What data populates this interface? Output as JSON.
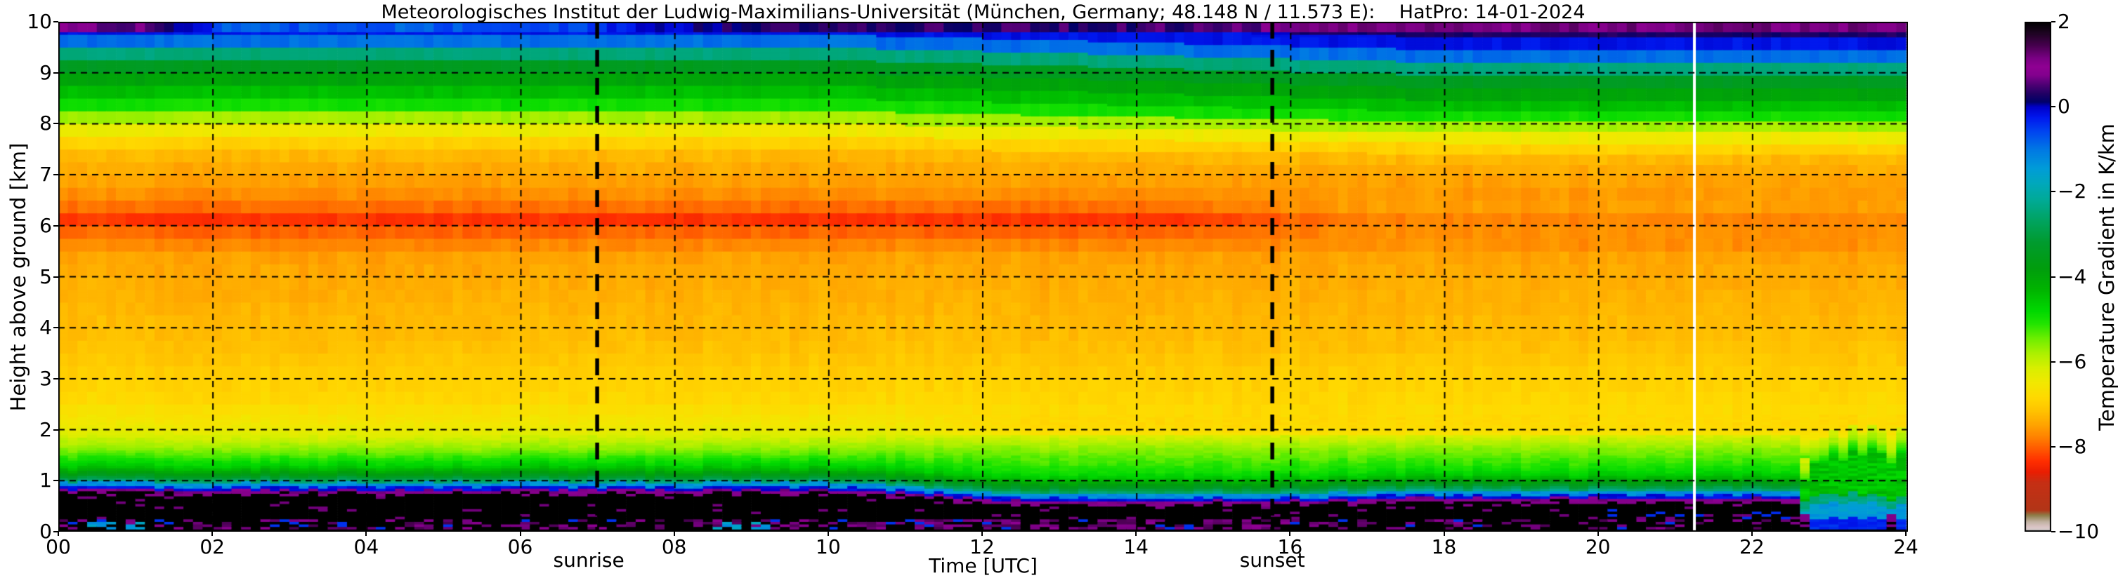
{
  "figure": {
    "background": "#ffffff"
  },
  "chart_data": {
    "type": "heatmap",
    "title": "Meteorologisches Institut der Ludwig-Maximilians-Universität (München, Germany; 48.148 N / 11.573 E):    HatPro: 14-01-2024",
    "xlabel": "Time [UTC]",
    "ylabel": "Height above ground [km]",
    "x_range_hours": [
      0,
      24
    ],
    "y_range_km": [
      0,
      10
    ],
    "x_ticks": [
      "00",
      "02",
      "04",
      "06",
      "08",
      "10",
      "12",
      "14",
      "16",
      "18",
      "20",
      "22",
      "24"
    ],
    "x_tick_hours": [
      0,
      2,
      4,
      6,
      8,
      10,
      12,
      14,
      16,
      18,
      20,
      22,
      24
    ],
    "y_ticks": [
      "0",
      "1",
      "2",
      "3",
      "4",
      "5",
      "6",
      "7",
      "8",
      "9",
      "10"
    ],
    "y_tick_km": [
      0,
      1,
      2,
      3,
      4,
      5,
      6,
      7,
      8,
      9,
      10
    ],
    "grid": {
      "horizontal_km": [
        1,
        2,
        3,
        4,
        5,
        6,
        7,
        8,
        9
      ],
      "vertical_hours": [
        0,
        2,
        4,
        6,
        8,
        10,
        12,
        14,
        16,
        18,
        20,
        22
      ],
      "style": "dashed"
    },
    "annotations": {
      "sunrise": {
        "label": "sunrise",
        "hour": 7.0
      },
      "sunset": {
        "label": "sunset",
        "hour": 15.77
      }
    },
    "data_gap_hour": 21.25,
    "colorbar": {
      "label": "Temperature Gradient in K/km",
      "min": -10,
      "max": 2,
      "tick_values": [
        2,
        0,
        -2,
        -4,
        -6,
        -8,
        -10
      ],
      "tick_labels": [
        "2",
        "0",
        "−2",
        "−4",
        "−6",
        "−8",
        "−10"
      ],
      "stops": [
        [
          2.0,
          "#000000"
        ],
        [
          1.75,
          "#1c0420"
        ],
        [
          1.45,
          "#46004e"
        ],
        [
          1.15,
          "#7a0084"
        ],
        [
          0.95,
          "#8f0092"
        ],
        [
          0.75,
          "#83008e"
        ],
        [
          0.5,
          "#480072"
        ],
        [
          0.3,
          "#1e0064"
        ],
        [
          0.12,
          "#000068"
        ],
        [
          0.0,
          "#0000c8"
        ],
        [
          -0.25,
          "#0018ee"
        ],
        [
          -0.6,
          "#0048f0"
        ],
        [
          -1.0,
          "#0078e4"
        ],
        [
          -1.45,
          "#009cd8"
        ],
        [
          -1.8,
          "#00a8bc"
        ],
        [
          -2.2,
          "#00aa96"
        ],
        [
          -2.7,
          "#00a35e"
        ],
        [
          -3.2,
          "#009b2e"
        ],
        [
          -3.8,
          "#009d0d"
        ],
        [
          -4.3,
          "#00b400"
        ],
        [
          -4.8,
          "#00d800"
        ],
        [
          -5.1,
          "#20e400"
        ],
        [
          -5.45,
          "#6cee00"
        ],
        [
          -5.8,
          "#abf000"
        ],
        [
          -6.15,
          "#d8ef00"
        ],
        [
          -6.5,
          "#f2e800"
        ],
        [
          -6.85,
          "#ffd900"
        ],
        [
          -7.15,
          "#ffc400"
        ],
        [
          -7.45,
          "#ffa800"
        ],
        [
          -7.75,
          "#ff8600"
        ],
        [
          -8.05,
          "#ff5a00"
        ],
        [
          -8.35,
          "#ff2e00"
        ],
        [
          -8.6,
          "#ea1e02"
        ],
        [
          -8.85,
          "#c62f14"
        ],
        [
          -9.5,
          "#b23517"
        ],
        [
          -9.62,
          "#8e7c48"
        ],
        [
          -9.78,
          "#c2b2a4"
        ],
        [
          -9.9,
          "#dcc6c6"
        ],
        [
          -10.0,
          "#cfcccc"
        ]
      ]
    },
    "field_model": {
      "note": "piecewise model of the temperature-gradient field (K/km) read from the image",
      "vertical_profile_breakpoints": [
        [
          0.95,
          -3.6
        ],
        [
          1.05,
          -4.3
        ],
        [
          1.2,
          -4.8
        ],
        [
          1.45,
          -5.2
        ],
        [
          1.6,
          -5.7
        ],
        [
          1.85,
          -6.15
        ],
        [
          2.1,
          -6.5
        ],
        [
          2.6,
          -6.85
        ],
        [
          3.2,
          -7.05
        ],
        [
          3.7,
          -7.2
        ],
        [
          4.3,
          -7.3
        ],
        [
          4.9,
          -7.4
        ],
        [
          5.4,
          -7.5
        ],
        [
          5.7,
          -7.8
        ],
        [
          5.95,
          -8.05
        ],
        [
          6.15,
          -8.35
        ],
        [
          6.3,
          -8.0
        ],
        [
          6.5,
          -7.75
        ],
        [
          6.8,
          -7.55
        ],
        [
          7.3,
          -7.35
        ],
        [
          7.55,
          -7.1
        ],
        [
          7.9,
          -6.4
        ],
        [
          8.15,
          -5.7
        ],
        [
          8.35,
          -5.0
        ],
        [
          8.55,
          -4.6
        ],
        [
          8.9,
          -3.9
        ],
        [
          9.25,
          -3.2
        ],
        [
          9.45,
          -2.0
        ],
        [
          9.6,
          -1.0
        ],
        [
          9.72,
          -0.6
        ],
        [
          9.82,
          -0.35
        ],
        [
          9.95,
          0.0
        ],
        [
          10.1,
          0.25
        ],
        [
          10.45,
          0.5
        ]
      ],
      "top_band_value_by_hour": [
        [
          0,
          0.9
        ],
        [
          1.3,
          0.55
        ],
        [
          2.2,
          -0.7
        ],
        [
          6.3,
          -0.75
        ],
        [
          7.2,
          -0.35
        ],
        [
          8.8,
          0.25
        ],
        [
          15.2,
          0.45
        ],
        [
          16.3,
          1.05
        ],
        [
          24,
          1.15
        ]
      ],
      "inversion_top_km_by_hour": [
        [
          0,
          0.78
        ],
        [
          10.3,
          0.78
        ],
        [
          12.3,
          0.56
        ],
        [
          16,
          0.56
        ],
        [
          17.2,
          0.61
        ],
        [
          22.6,
          0.61
        ]
      ],
      "upper_shift_km": {
        "start_hour": 10,
        "end_hour": 18,
        "max_shift": 0.3
      },
      "red_band_fade": {
        "center_km": 6.15,
        "sigma_km": 0.35,
        "start_hour": 14.5,
        "ramp_hours": 2.5,
        "amount": 0.55
      },
      "low_yellowing": {
        "center_km": 1.95,
        "sigma_km": 0.4,
        "start_hour": 10.5,
        "ramp_hours": 2.0,
        "amount": 0.4
      },
      "breakup_start_hour": 22.6,
      "speckle_band_km": [
        0.04,
        0.26
      ],
      "saturated_black_value": 2.3
    }
  }
}
